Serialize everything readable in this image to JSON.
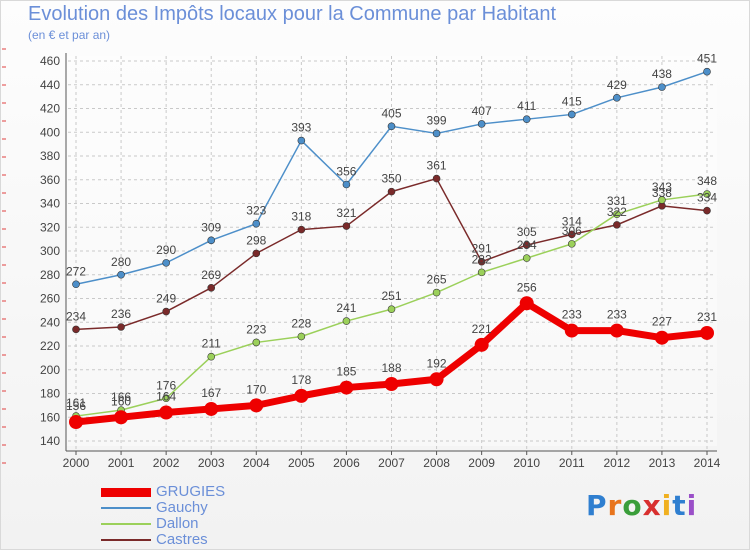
{
  "title": "Evolution des Impôts locaux pour la Commune par Habitant",
  "subtitle": "(en € et par an)",
  "logo": "Proxiti",
  "chart_data": {
    "type": "line",
    "x": [
      "2000",
      "2001",
      "2002",
      "2003",
      "2004",
      "2005",
      "2006",
      "2007",
      "2008",
      "2009",
      "2010",
      "2011",
      "2012",
      "2013",
      "2014"
    ],
    "ylim": [
      140,
      460
    ],
    "yticks": [
      140,
      160,
      180,
      200,
      220,
      240,
      260,
      280,
      300,
      320,
      340,
      360,
      380,
      400,
      420,
      440,
      460
    ],
    "grid": true,
    "legend_position": "bottom-left",
    "series": [
      {
        "name": "Gauchy",
        "color": "#4d8fc9",
        "width": 1.5,
        "marker": 3.5,
        "values": [
          272,
          280,
          290,
          309,
          323,
          393,
          356,
          405,
          399,
          407,
          411,
          415,
          429,
          438,
          451
        ]
      },
      {
        "name": "Castres",
        "color": "#7a2a2a",
        "width": 1.5,
        "marker": 3.5,
        "values": [
          234,
          236,
          249,
          269,
          298,
          318,
          321,
          350,
          361,
          291,
          305,
          314,
          322,
          338,
          334
        ]
      },
      {
        "name": "Dallon",
        "color": "#9bd05a",
        "width": 1.5,
        "marker": 3.5,
        "values": [
          161,
          166,
          176,
          211,
          223,
          228,
          241,
          251,
          265,
          282,
          294,
          306,
          331,
          343,
          348
        ]
      },
      {
        "name": "GRUGIES",
        "color": "#ee0000",
        "width": 7,
        "marker": 7,
        "values": [
          156,
          160,
          164,
          167,
          170,
          178,
          185,
          188,
          192,
          221,
          256,
          233,
          233,
          227,
          231
        ]
      }
    ],
    "legend": [
      {
        "name": "GRUGIES",
        "color": "#ee0000",
        "width": 9
      },
      {
        "name": "Gauchy",
        "color": "#4d8fc9",
        "width": 2
      },
      {
        "name": "Dallon",
        "color": "#9bd05a",
        "width": 2
      },
      {
        "name": "Castres",
        "color": "#7a2a2a",
        "width": 2
      }
    ]
  }
}
